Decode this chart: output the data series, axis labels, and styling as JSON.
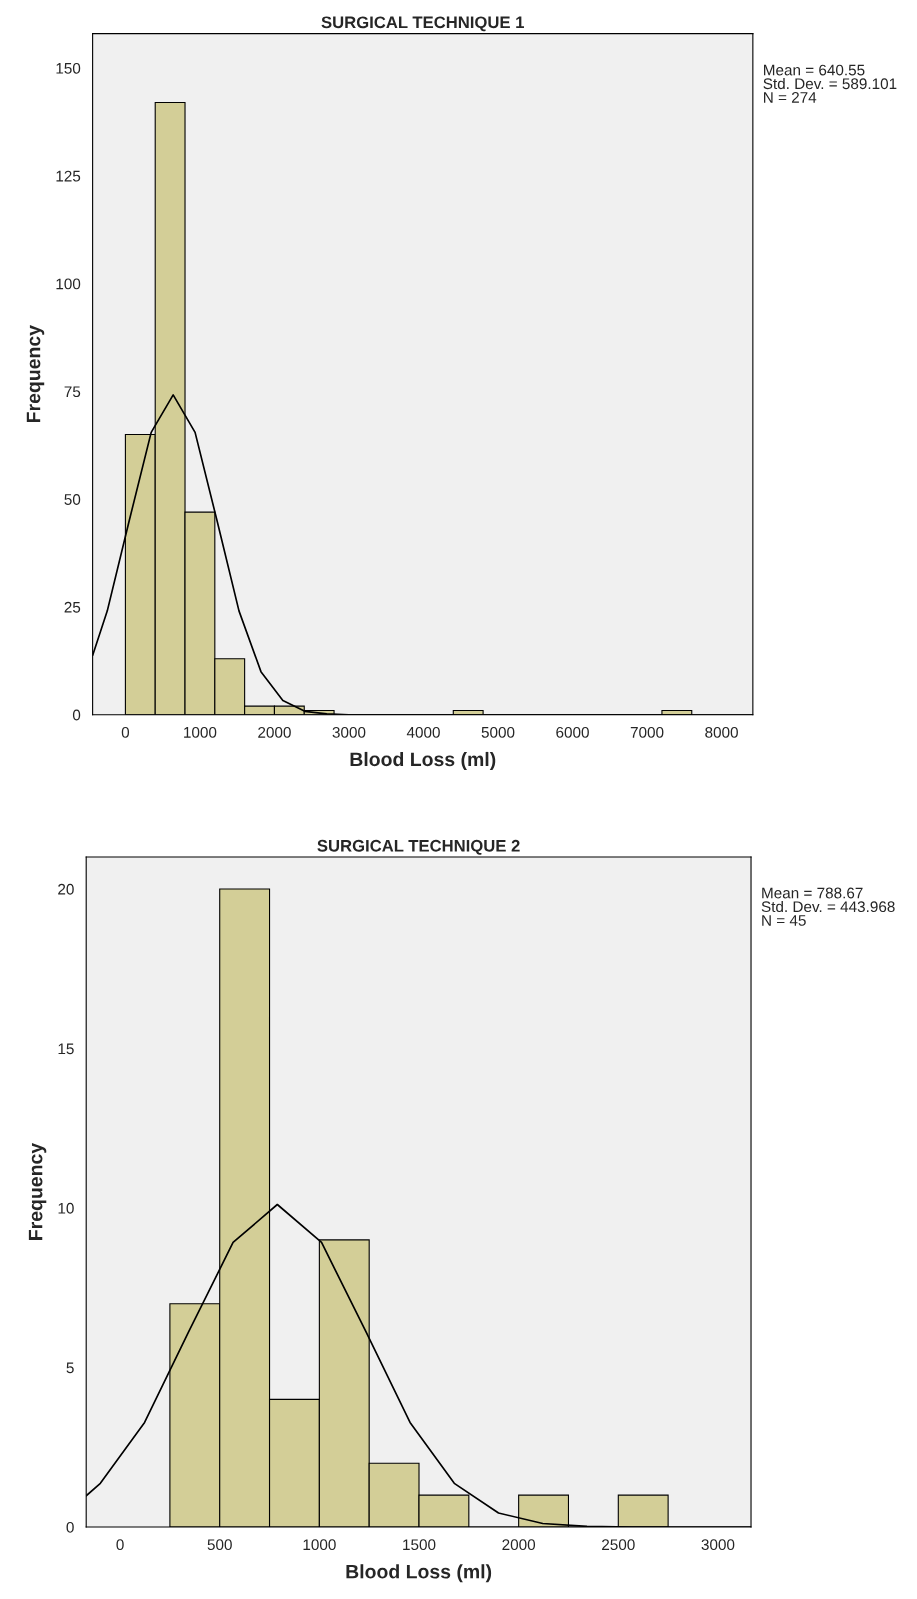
{
  "chart_data": [
    {
      "type": "histogram",
      "title": "SURGICAL TECHNIQUE 1",
      "xlabel": "Blood Loss (ml)",
      "ylabel": "Frequency",
      "bins": [
        0,
        400,
        800,
        1200,
        1600,
        2000,
        2400,
        2800,
        3200,
        3600,
        4000,
        4400,
        4800,
        5200,
        5600,
        6000,
        6400,
        6800,
        7200,
        7600
      ],
      "values": [
        65,
        142,
        47,
        13,
        2,
        2,
        1,
        0,
        0,
        0,
        0,
        1,
        0,
        0,
        0,
        0,
        0,
        0,
        1
      ],
      "color": "#d3ce97",
      "series": [
        {
          "type": "line",
          "color": "#000000",
          "x": [
            -439,
            -243,
            51,
            346,
            641,
            935,
            1230,
            1524,
            1819,
            2113,
            2408,
            2702,
            2997,
            8420
          ],
          "values": [
            13.8,
            24.1,
            45.0,
            65.5,
            74.2,
            65.5,
            45.0,
            24.1,
            10.0,
            3.3,
            0.8,
            0.2,
            0.0,
            0.0
          ]
        }
      ],
      "xlim": [
        -440,
        8420
      ],
      "xticks": [
        0,
        1000,
        2000,
        3000,
        4000,
        5000,
        6000,
        7000,
        8000
      ],
      "ylim": [
        0,
        158
      ],
      "yticks": [
        0,
        25,
        50,
        75,
        100,
        125,
        150
      ],
      "annotations": [
        "Mean = 640.55\nStd. Dev. = 589.101\nN = 274"
      ]
    },
    {
      "type": "histogram",
      "title": "SURGICAL TECHNIQUE 2",
      "xlabel": "Blood Loss (ml)",
      "ylabel": "Frequency",
      "bins": [
        250,
        500,
        750,
        1000,
        1250,
        1500,
        1750,
        2000,
        2250,
        2500,
        2750
      ],
      "values": [
        7,
        20,
        4,
        9,
        2,
        1,
        0,
        1,
        0,
        1
      ],
      "color": "#d3ce97",
      "series": [
        {
          "type": "line",
          "color": "#000000",
          "x": [
            -170,
            -99,
            123,
            345,
            567,
            789,
            1011,
            1233,
            1455,
            1677,
            1899,
            2121,
            2343,
            2565,
            3166
          ],
          "values": [
            0.98,
            1.37,
            3.28,
            6.13,
            8.92,
            10.11,
            8.92,
            6.13,
            3.28,
            1.37,
            0.44,
            0.11,
            0.02,
            0.0,
            0.0
          ]
        }
      ],
      "xlim": [
        -170,
        3166
      ],
      "xticks": [
        0,
        500,
        1000,
        1500,
        2000,
        2500,
        3000
      ],
      "ylim": [
        0,
        21
      ],
      "yticks": [
        0,
        5,
        10,
        15,
        20
      ],
      "annotations": [
        "Mean = 788.67\nStd. Dev. = 443.968\nN = 45"
      ]
    }
  ]
}
